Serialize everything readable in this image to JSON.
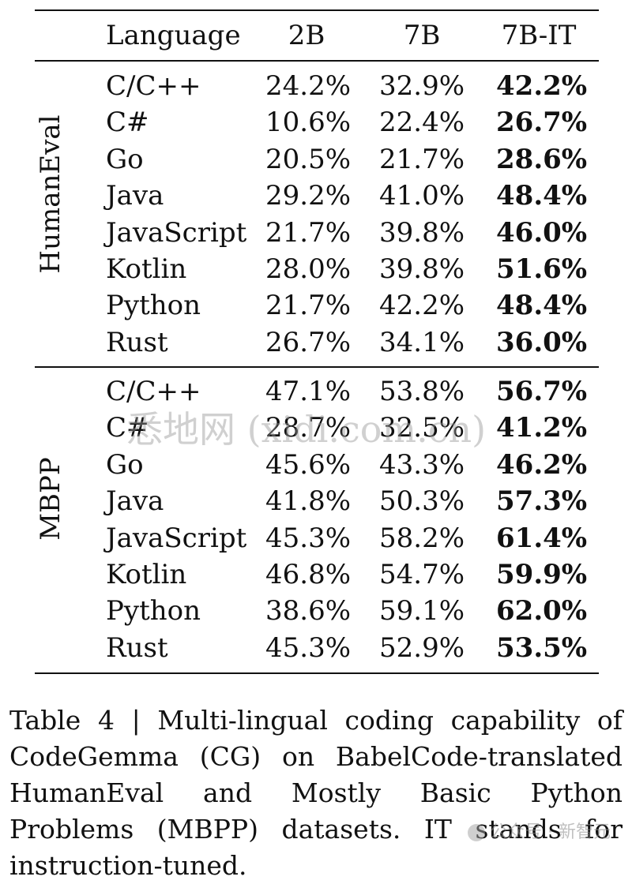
{
  "table": {
    "headers": {
      "language": "Language",
      "col_2b": "2B",
      "col_7b": "7B",
      "col_7bit": "7B-IT"
    },
    "groups": [
      {
        "label": "HumanEval",
        "rows": [
          {
            "language": "C/C++",
            "v2b": "24.2%",
            "v7b": "32.9%",
            "v7bit": "42.2%"
          },
          {
            "language": "C#",
            "v2b": "10.6%",
            "v7b": "22.4%",
            "v7bit": "26.7%"
          },
          {
            "language": "Go",
            "v2b": "20.5%",
            "v7b": "21.7%",
            "v7bit": "28.6%"
          },
          {
            "language": "Java",
            "v2b": "29.2%",
            "v7b": "41.0%",
            "v7bit": "48.4%"
          },
          {
            "language": "JavaScript",
            "v2b": "21.7%",
            "v7b": "39.8%",
            "v7bit": "46.0%"
          },
          {
            "language": "Kotlin",
            "v2b": "28.0%",
            "v7b": "39.8%",
            "v7bit": "51.6%"
          },
          {
            "language": "Python",
            "v2b": "21.7%",
            "v7b": "42.2%",
            "v7bit": "48.4%"
          },
          {
            "language": "Rust",
            "v2b": "26.7%",
            "v7b": "34.1%",
            "v7bit": "36.0%"
          }
        ]
      },
      {
        "label": "MBPP",
        "rows": [
          {
            "language": "C/C++",
            "v2b": "47.1%",
            "v7b": "53.8%",
            "v7bit": "56.7%"
          },
          {
            "language": "C#",
            "v2b": "28.7%",
            "v7b": "32.5%",
            "v7bit": "41.2%"
          },
          {
            "language": "Go",
            "v2b": "45.6%",
            "v7b": "43.3%",
            "v7bit": "46.2%"
          },
          {
            "language": "Java",
            "v2b": "41.8%",
            "v7b": "50.3%",
            "v7bit": "57.3%"
          },
          {
            "language": "JavaScript",
            "v2b": "45.3%",
            "v7b": "58.2%",
            "v7bit": "61.4%"
          },
          {
            "language": "Kotlin",
            "v2b": "46.8%",
            "v7b": "54.7%",
            "v7bit": "59.9%"
          },
          {
            "language": "Python",
            "v2b": "38.6%",
            "v7b": "59.1%",
            "v7bit": "62.0%"
          },
          {
            "language": "Rust",
            "v2b": "45.3%",
            "v7b": "52.9%",
            "v7bit": "53.5%"
          }
        ]
      }
    ]
  },
  "caption": "Table 4 | Multi-lingual coding capability of CodeGemma (CG) on BabelCode-translated HumanEval and Mostly Basic Python Problems (MBPP) datasets. IT stands for instruction-tuned.",
  "watermark": "悉地网 (xidi.com.cn)",
  "wechat_mark": "公众号 · 新智元"
}
